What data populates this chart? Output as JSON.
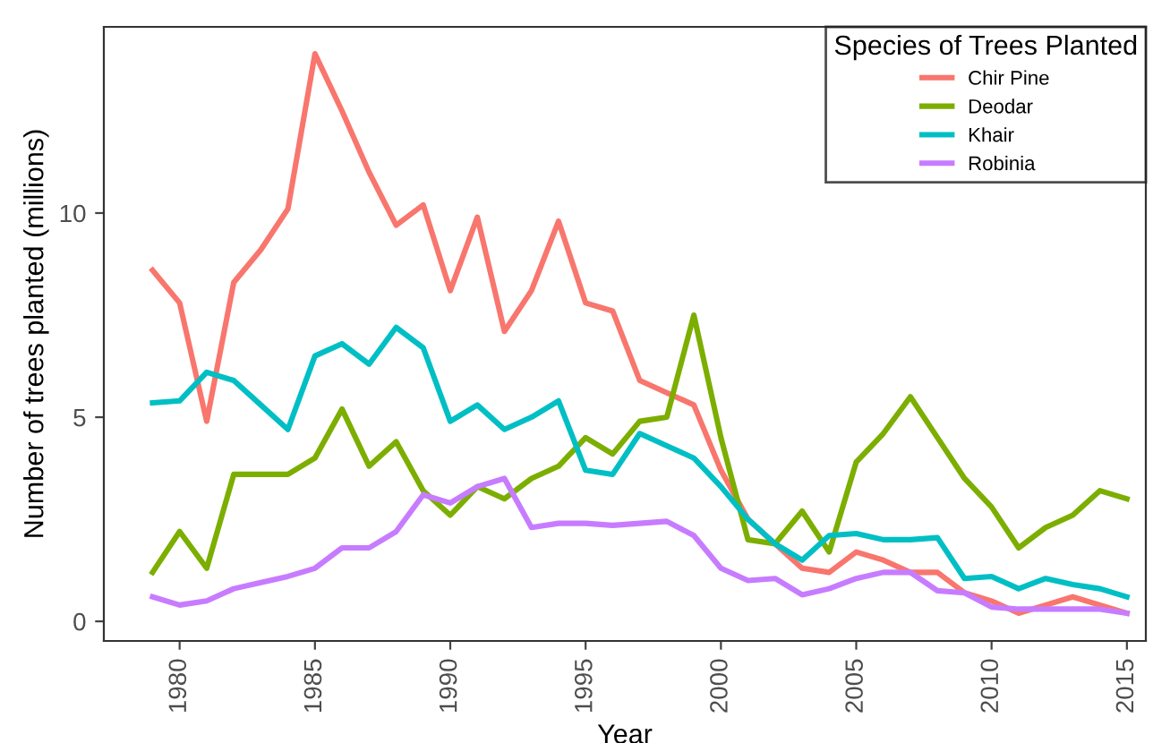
{
  "chart_data": {
    "type": "line",
    "xlabel": "Year",
    "ylabel": "Number of trees planted (millions)",
    "legend_title": "Species of Trees Planted",
    "legend": "top right",
    "grid": false,
    "marker": "none",
    "line_style": "solid",
    "x": [
      1979,
      1980,
      1981,
      1982,
      1983,
      1984,
      1985,
      1986,
      1987,
      1988,
      1989,
      1990,
      1991,
      1992,
      1993,
      1994,
      1995,
      1996,
      1997,
      1998,
      1999,
      2000,
      2001,
      2002,
      2003,
      2004,
      2005,
      2006,
      2007,
      2008,
      2009,
      2010,
      2011,
      2012,
      2013,
      2014,
      2015
    ],
    "xlim": [
      1977.2,
      2015.7
    ],
    "xticks": [
      1980,
      1985,
      1990,
      1995,
      2000,
      2005,
      2010,
      2015
    ],
    "ylim": [
      -0.48,
      14.56
    ],
    "yticks": [
      0,
      5,
      10
    ],
    "series": [
      {
        "name": "Chir Pine",
        "color": "#f8766d",
        "values": [
          8.6,
          7.8,
          4.9,
          8.3,
          9.1,
          10.1,
          13.9,
          12.5,
          11.0,
          9.7,
          10.2,
          8.1,
          9.9,
          7.1,
          8.1,
          9.8,
          7.8,
          7.6,
          5.9,
          5.6,
          5.3,
          3.7,
          2.5,
          1.9,
          1.3,
          1.2,
          1.7,
          1.5,
          1.2,
          1.2,
          0.7,
          0.5,
          0.2,
          0.4,
          0.6,
          0.4,
          0.2
        ]
      },
      {
        "name": "Deodar",
        "color": "#7cae00",
        "values": [
          1.2,
          2.2,
          1.3,
          3.6,
          3.6,
          3.6,
          4.0,
          5.2,
          3.8,
          4.4,
          3.2,
          2.6,
          3.3,
          3.0,
          3.5,
          3.8,
          4.5,
          4.1,
          4.9,
          5.0,
          7.5,
          4.5,
          2.0,
          1.9,
          2.7,
          1.7,
          3.9,
          4.6,
          5.5,
          4.5,
          3.5,
          2.8,
          1.8,
          2.3,
          2.6,
          3.2,
          3.0
        ]
      },
      {
        "name": "Khair",
        "color": "#00bfc4",
        "values": [
          5.35,
          5.4,
          6.1,
          5.9,
          5.3,
          4.7,
          6.5,
          6.8,
          6.3,
          7.2,
          6.7,
          4.9,
          5.3,
          4.7,
          5.0,
          5.4,
          3.7,
          3.6,
          4.6,
          4.3,
          4.0,
          3.3,
          2.5,
          1.9,
          1.5,
          2.1,
          2.15,
          2.0,
          2.0,
          2.05,
          1.05,
          1.1,
          0.8,
          1.05,
          0.9,
          0.8,
          0.6
        ]
      },
      {
        "name": "Robinia",
        "color": "#c77cff",
        "values": [
          0.6,
          0.4,
          0.5,
          0.8,
          0.95,
          1.1,
          1.3,
          1.8,
          1.8,
          2.2,
          3.1,
          2.9,
          3.3,
          3.5,
          2.3,
          2.4,
          2.4,
          2.35,
          2.4,
          2.45,
          2.1,
          1.3,
          1.0,
          1.05,
          0.65,
          0.8,
          1.05,
          1.2,
          1.2,
          0.75,
          0.7,
          0.35,
          0.3,
          0.3,
          0.3,
          0.3,
          0.2
        ]
      }
    ]
  }
}
